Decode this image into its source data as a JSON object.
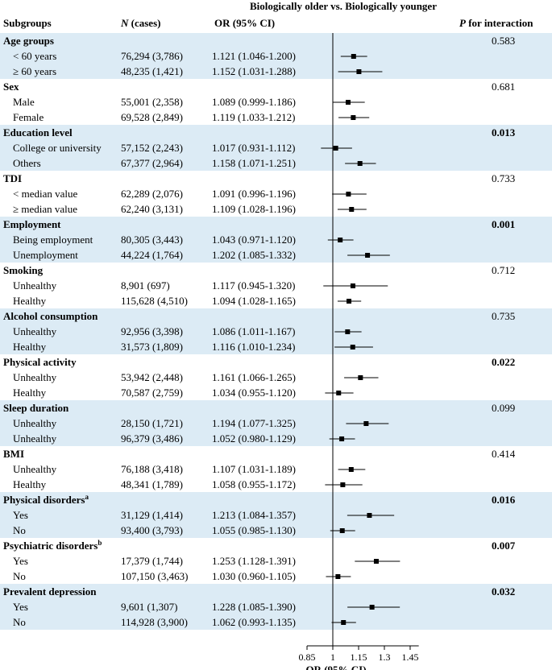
{
  "chart_data": {
    "type": "forest",
    "title": "Biologically older vs. Biologically younger",
    "columns": {
      "subgroups": "Subgroups",
      "n_italic": "N",
      "n_rest": " (cases)",
      "or": "OR (95% CI)",
      "p_italic": "P",
      "p_rest": " for interaction"
    },
    "xlabel": "OR (95% CI)",
    "xlim": [
      0.85,
      1.5
    ],
    "reference_line": 1,
    "ticks": [
      0.85,
      1,
      1.15,
      1.3,
      1.45
    ],
    "tick_labels": [
      "0.85",
      "1",
      "1.15",
      "1.3",
      "1.45"
    ],
    "groups": [
      {
        "name": "Age groups",
        "p": "0.583",
        "p_bold": false,
        "shaded": true,
        "rows": [
          {
            "label": "< 60 years",
            "n": "76,294 (3,786)",
            "or_text": "1.121 (1.046-1.200)",
            "or": 1.121,
            "lo": 1.046,
            "hi": 1.2
          },
          {
            "label": "≥ 60 years",
            "n": "48,235 (1,421)",
            "or_text": "1.152 (1.031-1.288)",
            "or": 1.152,
            "lo": 1.031,
            "hi": 1.288
          }
        ]
      },
      {
        "name": "Sex",
        "p": "0.681",
        "p_bold": false,
        "shaded": false,
        "rows": [
          {
            "label": "Male",
            "n": "55,001 (2,358)",
            "or_text": "1.089 (0.999-1.186)",
            "or": 1.089,
            "lo": 0.999,
            "hi": 1.186
          },
          {
            "label": "Female",
            "n": "69,528 (2,849)",
            "or_text": "1.119 (1.033-1.212)",
            "or": 1.119,
            "lo": 1.033,
            "hi": 1.212
          }
        ]
      },
      {
        "name": "Education level",
        "p": "0.013",
        "p_bold": true,
        "shaded": true,
        "rows": [
          {
            "label": "College or university",
            "n": "57,152 (2,243)",
            "or_text": "1.017 (0.931-1.112)",
            "or": 1.017,
            "lo": 0.931,
            "hi": 1.112
          },
          {
            "label": "Others",
            "n": "67,377 (2,964)",
            "or_text": "1.158 (1.071-1.251)",
            "or": 1.158,
            "lo": 1.071,
            "hi": 1.251
          }
        ]
      },
      {
        "name": "TDI",
        "p": "0.733",
        "p_bold": false,
        "shaded": false,
        "rows": [
          {
            "label": "< median value",
            "n": "62,289 (2,076)",
            "or_text": "1.091 (0.996-1.196)",
            "or": 1.091,
            "lo": 0.996,
            "hi": 1.196
          },
          {
            "label": "≥ median value",
            "n": "62,240 (3,131)",
            "or_text": "1.109 (1.028-1.196)",
            "or": 1.109,
            "lo": 1.028,
            "hi": 1.196
          }
        ]
      },
      {
        "name": "Employment",
        "p": "0.001",
        "p_bold": true,
        "shaded": true,
        "rows": [
          {
            "label": "Being employment",
            "n": "80,305 (3,443)",
            "or_text": "1.043 (0.971-1.120)",
            "or": 1.043,
            "lo": 0.971,
            "hi": 1.12
          },
          {
            "label": "Unemployment",
            "n": "44,224 (1,764)",
            "or_text": "1.202 (1.085-1.332)",
            "or": 1.202,
            "lo": 1.085,
            "hi": 1.332
          }
        ]
      },
      {
        "name": "Smoking",
        "p": "0.712",
        "p_bold": false,
        "shaded": false,
        "rows": [
          {
            "label": "Unhealthy",
            "n": "8,901 (697)",
            "or_text": "1.117 (0.945-1.320)",
            "or": 1.117,
            "lo": 0.945,
            "hi": 1.32
          },
          {
            "label": "Healthy",
            "n": "115,628 (4,510)",
            "or_text": "1.094 (1.028-1.165)",
            "or": 1.094,
            "lo": 1.028,
            "hi": 1.165
          }
        ]
      },
      {
        "name": "Alcohol consumption",
        "p": "0.735",
        "p_bold": false,
        "shaded": true,
        "rows": [
          {
            "label": "Unhealthy",
            "n": "92,956 (3,398)",
            "or_text": "1.086 (1.011-1.167)",
            "or": 1.086,
            "lo": 1.011,
            "hi": 1.167
          },
          {
            "label": "Healthy",
            "n": "31,573 (1,809)",
            "or_text": "1.116 (1.010-1.234)",
            "or": 1.116,
            "lo": 1.01,
            "hi": 1.234
          }
        ]
      },
      {
        "name": "Physical activity",
        "p": "0.022",
        "p_bold": true,
        "shaded": false,
        "rows": [
          {
            "label": "Unhealthy",
            "n": "53,942 (2,448)",
            "or_text": "1.161 (1.066-1.265)",
            "or": 1.161,
            "lo": 1.066,
            "hi": 1.265
          },
          {
            "label": "Healthy",
            "n": "70,587 (2,759)",
            "or_text": "1.034 (0.955-1.120)",
            "or": 1.034,
            "lo": 0.955,
            "hi": 1.12
          }
        ]
      },
      {
        "name": "Sleep duration",
        "p": "0.099",
        "p_bold": false,
        "shaded": true,
        "rows": [
          {
            "label": "Unhealthy",
            "n": "28,150 (1,721)",
            "or_text": "1.194 (1.077-1.325)",
            "or": 1.194,
            "lo": 1.077,
            "hi": 1.325
          },
          {
            "label": "Unhealthy",
            "n": "96,379 (3,486)",
            "or_text": "1.052 (0.980-1.129)",
            "or": 1.052,
            "lo": 0.98,
            "hi": 1.129
          }
        ]
      },
      {
        "name": "BMI",
        "p": "0.414",
        "p_bold": false,
        "shaded": false,
        "rows": [
          {
            "label": "Unhealthy",
            "n": "76,188 (3,418)",
            "or_text": "1.107 (1.031-1.189)",
            "or": 1.107,
            "lo": 1.031,
            "hi": 1.189
          },
          {
            "label": "Healthy",
            "n": "48,341 (1,789)",
            "or_text": "1.058 (0.955-1.172)",
            "or": 1.058,
            "lo": 0.955,
            "hi": 1.172
          }
        ]
      },
      {
        "name": "Physical disorders",
        "sup": "a",
        "p": "0.016",
        "p_bold": true,
        "shaded": true,
        "rows": [
          {
            "label": "Yes",
            "n": "31,129 (1,414)",
            "or_text": "1.213 (1.084-1.357)",
            "or": 1.213,
            "lo": 1.084,
            "hi": 1.357
          },
          {
            "label": "No",
            "n": "93,400 (3,793)",
            "or_text": "1.055 (0.985-1.130)",
            "or": 1.055,
            "lo": 0.985,
            "hi": 1.13
          }
        ]
      },
      {
        "name": "Psychiatric disorders",
        "sup": "b",
        "p": "0.007",
        "p_bold": true,
        "shaded": false,
        "rows": [
          {
            "label": "Yes",
            "n": "17,379 (1,744)",
            "or_text": "1.253 (1.128-1.391)",
            "or": 1.253,
            "lo": 1.128,
            "hi": 1.391
          },
          {
            "label": "No",
            "n": "107,150 (3,463)",
            "or_text": "1.030 (0.960-1.105)",
            "or": 1.03,
            "lo": 0.96,
            "hi": 1.105
          }
        ]
      },
      {
        "name": "Prevalent depression",
        "p": "0.032",
        "p_bold": true,
        "shaded": true,
        "rows": [
          {
            "label": "Yes",
            "n": "9,601 (1,307)",
            "or_text": "1.228 (1.085-1.390)",
            "or": 1.228,
            "lo": 1.085,
            "hi": 1.39
          },
          {
            "label": "No",
            "n": "114,928 (3,900)",
            "or_text": "1.062 (0.993-1.135)",
            "or": 1.062,
            "lo": 0.993,
            "hi": 1.135
          }
        ]
      }
    ]
  },
  "colors": {
    "band": "#dcebf5",
    "text": "#000000",
    "line": "#000000"
  }
}
